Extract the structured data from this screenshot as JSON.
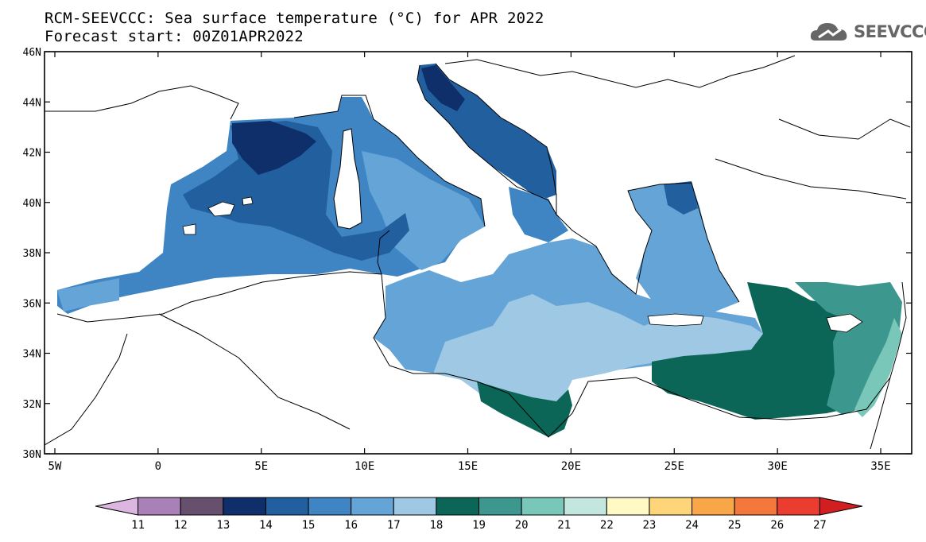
{
  "title": {
    "line1": "RCM-SEEVCCC: Sea surface temperature (°C) for APR 2022",
    "line2": "Forecast start: 00Z01APR2022"
  },
  "logo": {
    "text": "SEEVCCC",
    "icon": "cloud-logo-icon"
  },
  "map": {
    "lat_labels": [
      "46N",
      "44N",
      "42N",
      "40N",
      "38N",
      "36N",
      "34N",
      "32N",
      "30N"
    ],
    "lon_labels": [
      "5W",
      "0",
      "5E",
      "10E",
      "15E",
      "20E",
      "25E",
      "30E",
      "35E"
    ],
    "lat_range": [
      30,
      46
    ],
    "lon_range": [
      -5.5,
      36.5
    ]
  },
  "colorbar": {
    "labels": [
      "11",
      "12",
      "13",
      "14",
      "15",
      "16",
      "17",
      "18",
      "19",
      "20",
      "21",
      "22",
      "23",
      "24",
      "25",
      "26",
      "27"
    ],
    "colors": [
      "#dcb6e0",
      "#aa80b8",
      "#67506e",
      "#0f2f6b",
      "#215f9e",
      "#3f85c4",
      "#64a4d6",
      "#9fc8e4",
      "#0b6658",
      "#3c978e",
      "#79c7b9",
      "#c3e6df",
      "#fff9c6",
      "#fed679",
      "#f8a647",
      "#f4783c",
      "#ea3d2f",
      "#d11e21"
    ]
  },
  "colors": {
    "sst_14": "#0f2f6b",
    "sst_15": "#215f9e",
    "sst_16": "#3f85c4",
    "sst_17": "#64a4d6",
    "sst_18": "#9fc8e4",
    "sst_19": "#0b6658",
    "sst_20": "#3c978e",
    "sst_21": "#79c7b9"
  }
}
